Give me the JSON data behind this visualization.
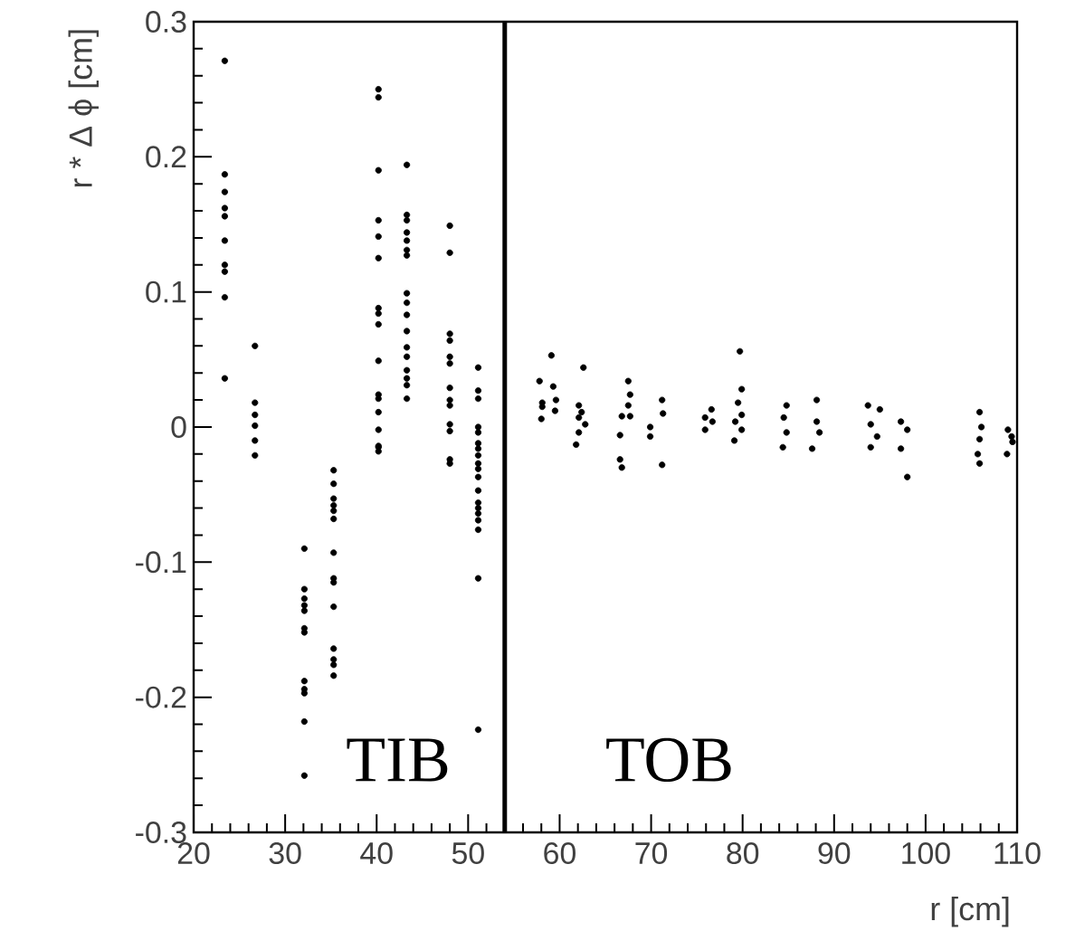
{
  "chart_data": {
    "type": "scatter",
    "xlabel": "r [cm]",
    "ylabel": "r * Δ ϕ [cm]",
    "xlim": [
      20,
      110
    ],
    "xticks": [
      20,
      30,
      40,
      50,
      60,
      70,
      80,
      90,
      100,
      110
    ],
    "ylim": [
      -0.3,
      0.3
    ],
    "yticks": [
      -0.3,
      -0.2,
      -0.1,
      0,
      0.1,
      0.2,
      0.3
    ],
    "grid": false,
    "ref_lines": [
      {
        "axis": "x",
        "value": 54,
        "label": null,
        "color": "#000000"
      }
    ],
    "annotations": [
      "TIB",
      "TOB"
    ],
    "series": [
      {
        "color": "#000000",
        "x": [
          23.4,
          23.4,
          23.4,
          23.4,
          23.4,
          23.4,
          23.4,
          23.4,
          23.4,
          23.4,
          26.7,
          26.7,
          26.7,
          26.7,
          26.7,
          26.7,
          32.1,
          32.1,
          32.1,
          32.1,
          32.1,
          32.1,
          32.1,
          32.1,
          32.1,
          32.1,
          32.1,
          32.1,
          35.3,
          35.3,
          35.3,
          35.3,
          35.3,
          35.3,
          35.3,
          35.3,
          35.3,
          35.3,
          35.3,
          35.3,
          35.3,
          35.3,
          40.2,
          40.2,
          40.2,
          40.2,
          40.2,
          40.2,
          40.2,
          40.2,
          40.2,
          40.2,
          40.2,
          40.2,
          40.2,
          40.2,
          40.2,
          40.2,
          40.2,
          43.3,
          43.3,
          43.3,
          43.3,
          43.3,
          43.3,
          43.3,
          43.3,
          43.3,
          43.3,
          43.3,
          43.3,
          43.3,
          43.3,
          43.3,
          43.3,
          43.3,
          48,
          48,
          48,
          48,
          48,
          48,
          48,
          48,
          48,
          48,
          48,
          48,
          48,
          51.1,
          51.1,
          51.1,
          51.1,
          51.1,
          51.1,
          51.1,
          51.1,
          51.1,
          51.1,
          51.1,
          51.1,
          51.1,
          51.1,
          51.1,
          51.1,
          51.1,
          51.1,
          51.1,
          59.1,
          57.8,
          58.1,
          58.1,
          58.0,
          59.3,
          59.6,
          59.5,
          62.6,
          62.1,
          62.4,
          62.1,
          62.8,
          62.1,
          61.8,
          67.5,
          67.7,
          67.5,
          66.8,
          67.7,
          66.6,
          66.6,
          66.8,
          69.9,
          69.9,
          71.2,
          71.3,
          71.2,
          75.9,
          76.6,
          75.9,
          76.7,
          79.7,
          79.9,
          79.5,
          79.9,
          79.2,
          79.9,
          79.1,
          84.8,
          84.5,
          84.8,
          84.4,
          88.1,
          88.1,
          88.4,
          87.6,
          93.7,
          95.0,
          94.0,
          94.7,
          94.0,
          97.3,
          98.0,
          97.3,
          98.0,
          105.9,
          106.1,
          105.9,
          105.7,
          105.9,
          109.0,
          109.4,
          109.5,
          108.9
        ],
        "values": [
          0.271,
          0.187,
          0.174,
          0.162,
          0.156,
          0.138,
          0.12,
          0.115,
          0.096,
          0.036,
          0.06,
          0.018,
          0.009,
          0.001,
          -0.01,
          -0.021,
          -0.09,
          -0.12,
          -0.127,
          -0.132,
          -0.136,
          -0.149,
          -0.152,
          -0.188,
          -0.194,
          -0.197,
          -0.218,
          -0.258,
          -0.032,
          -0.042,
          -0.053,
          -0.058,
          -0.062,
          -0.068,
          -0.093,
          -0.112,
          -0.115,
          -0.133,
          -0.164,
          -0.172,
          -0.176,
          -0.184,
          0.25,
          0.244,
          0.19,
          0.153,
          0.141,
          0.125,
          0.088,
          0.084,
          0.076,
          0.049,
          0.024,
          0.021,
          0.011,
          -0.002,
          -0.014,
          -0.015,
          -0.018,
          0.194,
          0.157,
          0.153,
          0.144,
          0.138,
          0.131,
          0.127,
          0.099,
          0.092,
          0.083,
          0.071,
          0.059,
          0.052,
          0.042,
          0.036,
          0.031,
          0.021,
          0.149,
          0.129,
          0.069,
          0.064,
          0.052,
          0.047,
          0.029,
          0.02,
          0.016,
          0.002,
          -0.003,
          -0.024,
          -0.027,
          0.044,
          0.027,
          0.021,
          0,
          -0.004,
          -0.021,
          -0.027,
          -0.031,
          -0.037,
          -0.047,
          -0.056,
          -0.06,
          -0.064,
          -0.069,
          -0.076,
          -0.112,
          -0.224,
          -0.012,
          -0.016,
          0.053,
          0.034,
          0.018,
          0.015,
          0.006,
          0.03,
          0.02,
          0.012,
          0.044,
          0.016,
          0.011,
          0.007,
          0.002,
          -0.004,
          -0.013,
          0.034,
          0.024,
          0.016,
          0.008,
          0.008,
          -0.006,
          -0.024,
          -0.03,
          0,
          -0.007,
          0.02,
          0.01,
          -0.028,
          0.007,
          0.013,
          -0.002,
          0.004,
          0.056,
          0.028,
          0.018,
          0.009,
          0.004,
          -0.002,
          -0.01,
          0.016,
          0.007,
          -0.004,
          -0.015,
          0.02,
          0.004,
          -0.004,
          -0.016,
          0.016,
          0.013,
          0.002,
          -0.007,
          -0.015,
          0.004,
          -0.002,
          -0.016,
          -0.037,
          0.011,
          0,
          -0.009,
          -0.02,
          -0.027,
          -0.002,
          -0.007,
          -0.011,
          -0.02
        ]
      }
    ]
  }
}
